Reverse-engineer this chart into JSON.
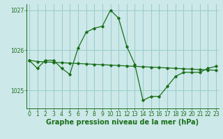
{
  "title": "Graphe pression niveau de la mer (hPa)",
  "bg_color": "#cce8e8",
  "grid_color": "#99cccc",
  "line_color": "#1a6e1a",
  "line1": [
    1025.75,
    1025.55,
    1025.75,
    1025.75,
    1025.55,
    1025.4,
    1026.05,
    1026.45,
    1026.55,
    1026.6,
    1027.0,
    1026.8,
    1026.1,
    1025.65,
    1024.75,
    1024.85,
    1024.85,
    1025.1,
    1025.35,
    1025.45,
    1025.45,
    1025.45,
    1025.55,
    1025.6
  ],
  "line2": [
    1025.75,
    1025.72,
    1025.71,
    1025.7,
    1025.69,
    1025.68,
    1025.67,
    1025.66,
    1025.65,
    1025.64,
    1025.63,
    1025.62,
    1025.61,
    1025.6,
    1025.59,
    1025.58,
    1025.57,
    1025.56,
    1025.55,
    1025.54,
    1025.53,
    1025.52,
    1025.51,
    1025.5
  ],
  "xlim": [
    -0.3,
    23.3
  ],
  "ylim": [
    1024.55,
    1027.15
  ],
  "yticks": [
    1025,
    1026,
    1027
  ],
  "xticks": [
    0,
    1,
    2,
    3,
    4,
    5,
    6,
    7,
    8,
    9,
    10,
    11,
    12,
    13,
    14,
    15,
    16,
    17,
    18,
    19,
    20,
    21,
    22,
    23
  ],
  "tick_fontsize": 5.5,
  "title_fontsize": 7.0,
  "marker": "D",
  "markersize": 1.8,
  "linewidth": 0.9
}
